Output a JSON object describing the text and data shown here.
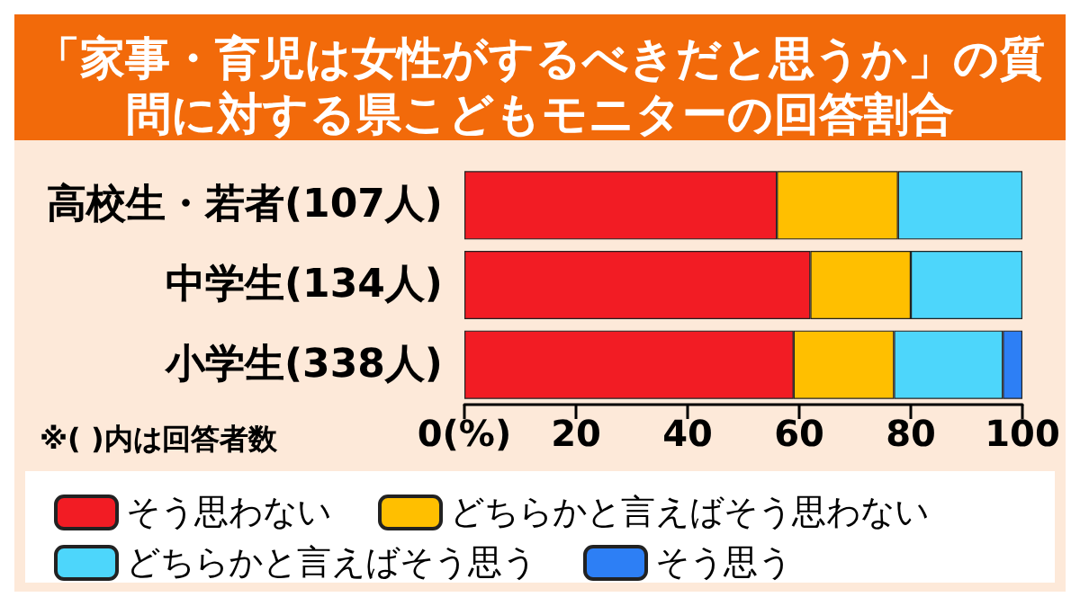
{
  "chart_data": {
    "type": "bar",
    "orientation": "horizontal",
    "stacked": true,
    "title": "「家事・育児は女性がするべきだと思うか」の質問に対する県こどもモニターの回答割合",
    "categories": [
      "高校生・若者(107人)",
      "中学生(134人)",
      "小学生(338人)"
    ],
    "series": [
      {
        "name": "そう思わない",
        "color": "#f21c24",
        "values": [
          56,
          62,
          59
        ]
      },
      {
        "name": "どちらかと言えばそう思わない",
        "color": "#ffbf00",
        "values": [
          21.7,
          18,
          18
        ]
      },
      {
        "name": "どちらかと言えばそう思う",
        "color": "#4dd6fb",
        "values": [
          22.3,
          20,
          19.5
        ]
      },
      {
        "name": "そう思う",
        "color": "#2d7ff5",
        "values": [
          null,
          null,
          3.5
        ]
      }
    ],
    "xlim": [
      0,
      100
    ],
    "xticks": [
      {
        "value": 0,
        "label": "0(%)"
      },
      20,
      40,
      60,
      80,
      100
    ],
    "grid": false,
    "legend": "bottom",
    "annotations": [
      "※( )内は回答者数"
    ]
  }
}
